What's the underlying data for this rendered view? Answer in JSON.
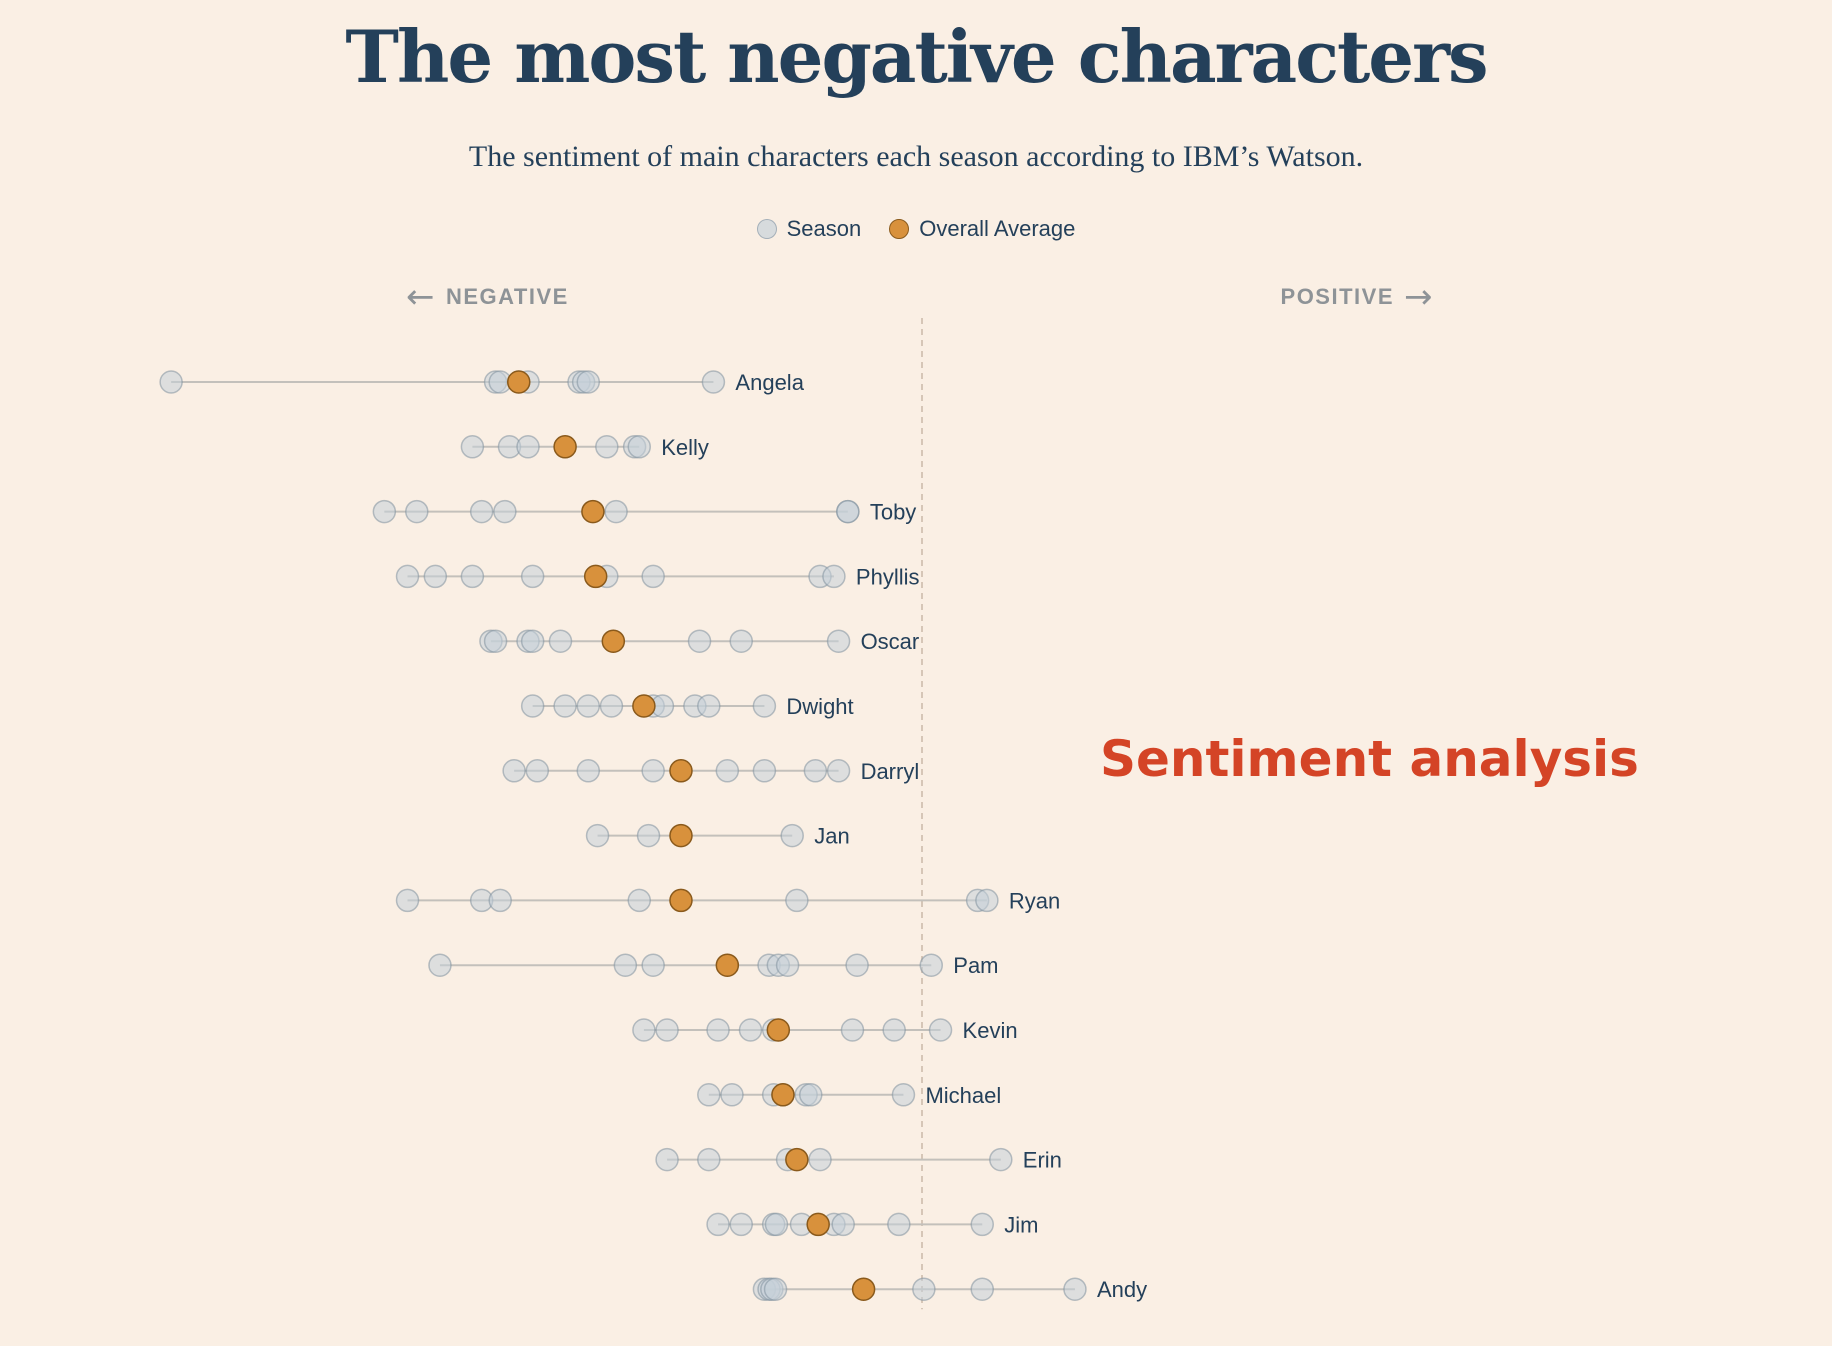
{
  "title": "The most negative characters",
  "subtitle": "The sentiment of main characters each season according to IBM’s Watson.",
  "legend": {
    "season": "Season",
    "average": "Overall Average"
  },
  "direction": {
    "negative": "NEGATIVE",
    "positive": "POSITIVE"
  },
  "watermark": "Sentiment analysis",
  "colors": {
    "background": "#faefe4",
    "text": "#24405a",
    "season_fill": "#c4d0d9",
    "average_fill": "#d8913c",
    "zero_line": "#c9b8a8"
  },
  "chart_data": {
    "type": "scatter",
    "orientation": "dot-plot, one row per character",
    "x_center": 0,
    "grid": false,
    "legend_position": "top-center",
    "rows": [
      {
        "name": "Angela",
        "seasons": [
          -0.81,
          -0.46,
          -0.455,
          -0.425,
          -0.37,
          -0.365,
          -0.36,
          -0.225
        ],
        "average": -0.435
      },
      {
        "name": "Kelly",
        "seasons": [
          -0.485,
          -0.445,
          -0.425,
          -0.34,
          -0.31,
          -0.305
        ],
        "average": -0.385
      },
      {
        "name": "Toby",
        "seasons": [
          -0.58,
          -0.545,
          -0.475,
          -0.45,
          -0.33,
          -0.08,
          -0.08
        ],
        "average": -0.355
      },
      {
        "name": "Phyllis",
        "seasons": [
          -0.555,
          -0.525,
          -0.485,
          -0.42,
          -0.34,
          -0.29,
          -0.11,
          -0.095
        ],
        "average": -0.352
      },
      {
        "name": "Oscar",
        "seasons": [
          -0.465,
          -0.46,
          -0.425,
          -0.42,
          -0.39,
          -0.24,
          -0.195,
          -0.09
        ],
        "average": -0.333
      },
      {
        "name": "Dwight",
        "seasons": [
          -0.42,
          -0.385,
          -0.36,
          -0.335,
          -0.29,
          -0.28,
          -0.245,
          -0.23,
          -0.17
        ],
        "average": -0.3
      },
      {
        "name": "Darryl",
        "seasons": [
          -0.44,
          -0.415,
          -0.36,
          -0.29,
          -0.21,
          -0.17,
          -0.115,
          -0.09
        ],
        "average": -0.26
      },
      {
        "name": "Jan",
        "seasons": [
          -0.35,
          -0.295,
          -0.14
        ],
        "average": -0.26
      },
      {
        "name": "Ryan",
        "seasons": [
          -0.555,
          -0.475,
          -0.455,
          -0.305,
          -0.135,
          0.06,
          0.07
        ],
        "average": -0.26
      },
      {
        "name": "Pam",
        "seasons": [
          -0.52,
          -0.32,
          -0.29,
          -0.165,
          -0.155,
          -0.145,
          -0.07,
          0.01
        ],
        "average": -0.21
      },
      {
        "name": "Kevin",
        "seasons": [
          -0.3,
          -0.275,
          -0.22,
          -0.185,
          -0.16,
          -0.075,
          -0.03,
          0.02
        ],
        "average": -0.155
      },
      {
        "name": "Michael",
        "seasons": [
          -0.23,
          -0.205,
          -0.16,
          -0.15,
          -0.125,
          -0.12,
          -0.02
        ],
        "average": -0.15
      },
      {
        "name": "Erin",
        "seasons": [
          -0.275,
          -0.23,
          -0.145,
          -0.11,
          0.085
        ],
        "average": -0.135
      },
      {
        "name": "Jim",
        "seasons": [
          -0.22,
          -0.195,
          -0.16,
          -0.157,
          -0.13,
          -0.095,
          -0.085,
          -0.025,
          0.065
        ],
        "average": -0.112
      },
      {
        "name": "Andy",
        "seasons": [
          -0.17,
          -0.165,
          -0.162,
          -0.158,
          0.002,
          0.065,
          0.165
        ],
        "average": -0.063
      }
    ]
  }
}
